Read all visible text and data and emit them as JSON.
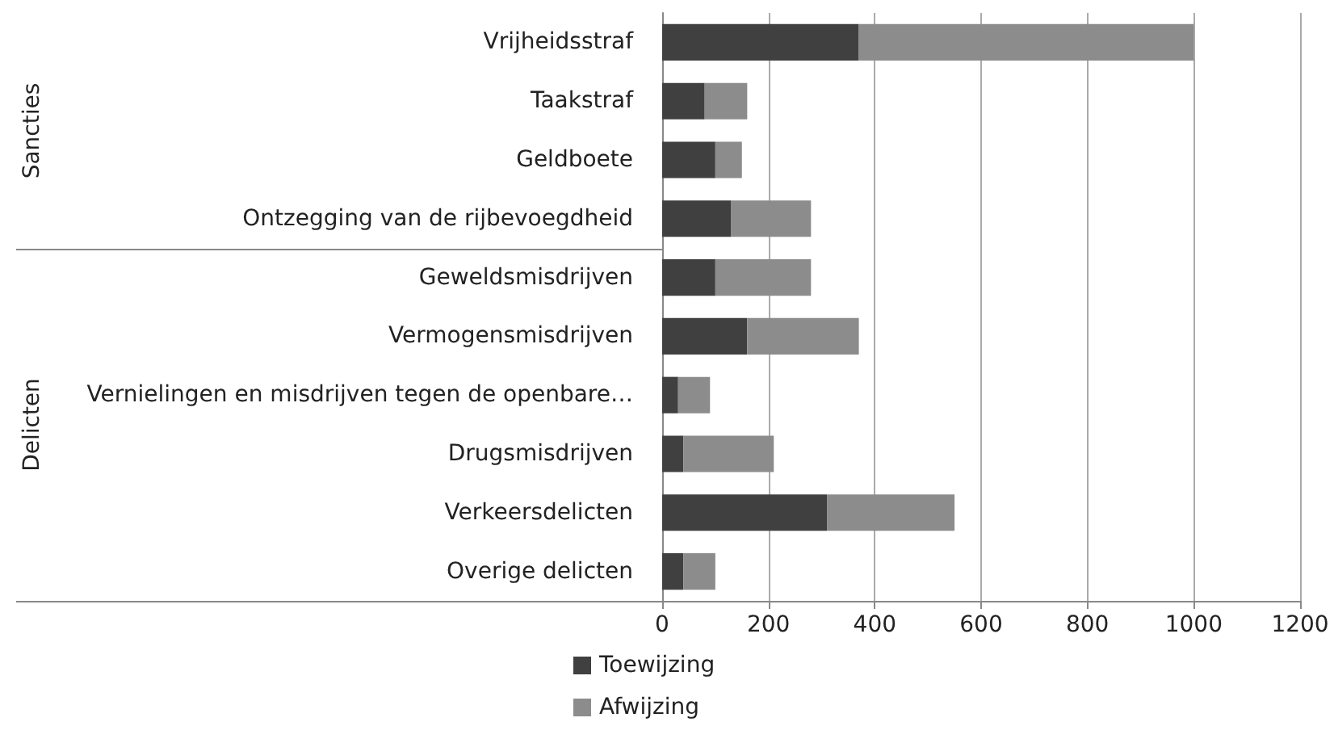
{
  "chart_data": {
    "type": "bar",
    "orientation": "horizontal",
    "stacked": true,
    "categories": [
      "Vrijheidsstraf",
      "Taakstraf",
      "Geldboete",
      "Ontzegging van de rijbevoegdheid",
      "Geweldsmisdrijven",
      "Vermogensmisdrijven",
      "Vernielingen en misdrijven tegen de openbare…",
      "Drugsmisdrijven",
      "Verkeersdelicten",
      "Overige delicten"
    ],
    "series": [
      {
        "name": "Toewijzing",
        "color": "#404040",
        "values": [
          370,
          80,
          100,
          130,
          100,
          160,
          30,
          40,
          310,
          40
        ]
      },
      {
        "name": "Afwijzing",
        "color": "#8c8c8c",
        "values": [
          630,
          80,
          50,
          150,
          180,
          210,
          60,
          170,
          240,
          60
        ]
      }
    ],
    "xlim": [
      0,
      1200
    ],
    "xticks": [
      0,
      200,
      400,
      600,
      800,
      1000,
      1200
    ],
    "grid": "x",
    "legend": "bottom",
    "annotations": [
      "Sancties",
      "Delicten"
    ]
  }
}
